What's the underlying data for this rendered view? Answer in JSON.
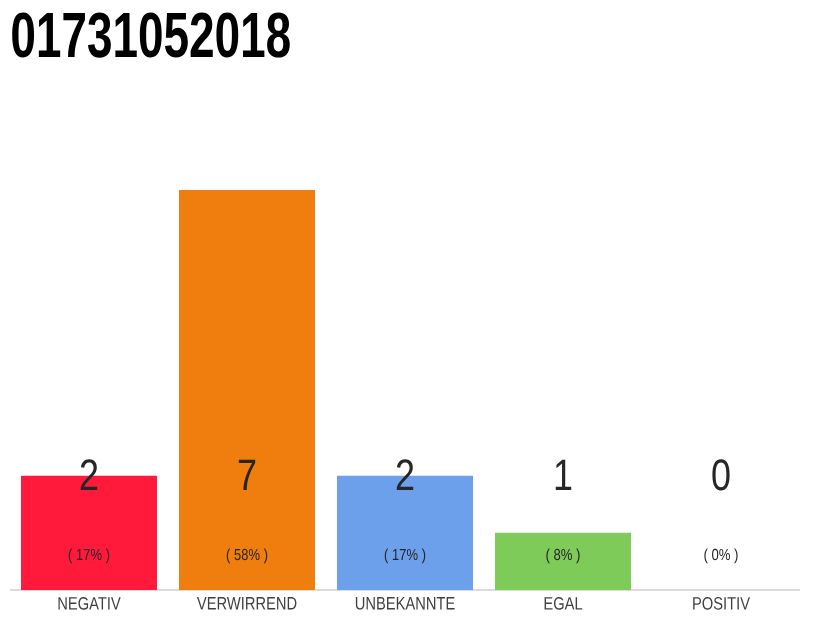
{
  "chart_data": {
    "type": "bar",
    "title": "01731052018",
    "categories": [
      "NEGATIV",
      "VERWIRREND",
      "UNBEKANNTE",
      "EGAL",
      "POSITIV"
    ],
    "values": [
      2,
      7,
      2,
      1,
      0
    ],
    "colors": [
      "#ff1a3c",
      "#f07e0e",
      "#6da0eb",
      "#7ecb5a",
      "#cccccc"
    ],
    "value_labels": [
      "2",
      "7",
      "2",
      "1",
      "0"
    ],
    "annotations": [
      "( 17% )",
      "( 58% )",
      "( 17% )",
      "( 8% )",
      "( 0% )"
    ],
    "tick_labels": "x"
  }
}
